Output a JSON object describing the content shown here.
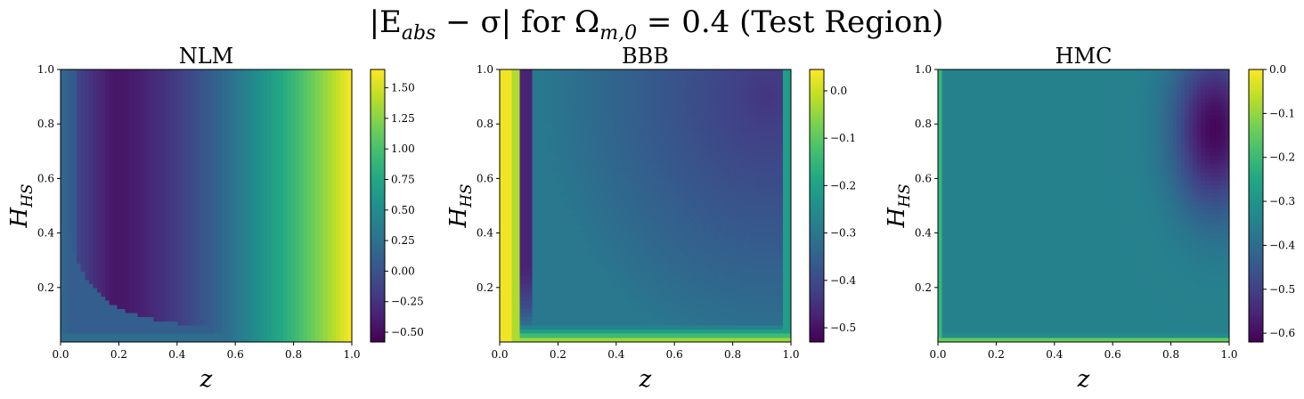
{
  "figure": {
    "title_parts": [
      "|E",
      "abs",
      " − σ| for Ω",
      "m,0",
      " = 0.4 (Test Region)"
    ]
  },
  "chart_data": [
    {
      "type": "heatmap",
      "title": "NLM",
      "xlabel": "z",
      "ylabel_main": "H",
      "ylabel_sub": "HS",
      "xlim": [
        0.0,
        1.0
      ],
      "ylim": [
        0.0,
        1.0
      ],
      "xticks": [
        "0.0",
        "0.2",
        "0.4",
        "0.6",
        "0.8",
        "1.0"
      ],
      "yticks": [
        "0.2",
        "0.4",
        "0.6",
        "0.8",
        "1.0"
      ],
      "colorbar": {
        "min": -0.58,
        "max": 1.65,
        "ticks": [
          -0.5,
          -0.25,
          0.0,
          0.25,
          0.5,
          0.75,
          1.0,
          1.25,
          1.5
        ],
        "tick_labels": [
          "−0.50",
          "−0.25",
          "0.00",
          "0.25",
          "0.50",
          "0.75",
          "1.00",
          "1.25",
          "1.50"
        ]
      }
    },
    {
      "type": "heatmap",
      "title": "BBB",
      "xlabel": "z",
      "ylabel_main": "H",
      "ylabel_sub": "HS",
      "xlim": [
        0.0,
        1.0
      ],
      "ylim": [
        0.0,
        1.0
      ],
      "xticks": [
        "0.0",
        "0.2",
        "0.4",
        "0.6",
        "0.8",
        "1.0"
      ],
      "yticks": [
        "0.2",
        "0.4",
        "0.6",
        "0.8",
        "1.0"
      ],
      "colorbar": {
        "min": -0.53,
        "max": 0.045,
        "ticks": [
          -0.5,
          -0.4,
          -0.3,
          -0.2,
          -0.1,
          0.0
        ],
        "tick_labels": [
          "−0.5",
          "−0.4",
          "−0.3",
          "−0.2",
          "−0.1",
          "0.0"
        ]
      }
    },
    {
      "type": "heatmap",
      "title": "HMC",
      "xlabel": "z",
      "ylabel_main": "H",
      "ylabel_sub": "HS",
      "xlim": [
        0.0,
        1.0
      ],
      "ylim": [
        0.0,
        1.0
      ],
      "xticks": [
        "0.0",
        "0.2",
        "0.4",
        "0.6",
        "0.8",
        "1.0"
      ],
      "yticks": [
        "0.2",
        "0.4",
        "0.6",
        "0.8",
        "1.0"
      ],
      "colorbar": {
        "min": -0.62,
        "max": 0.0,
        "ticks": [
          -0.6,
          -0.5,
          -0.4,
          -0.3,
          -0.2,
          -0.1,
          0.0
        ],
        "tick_labels": [
          "−0.6",
          "−0.5",
          "−0.4",
          "−0.3",
          "−0.2",
          "−0.1",
          "0.0"
        ]
      }
    }
  ]
}
